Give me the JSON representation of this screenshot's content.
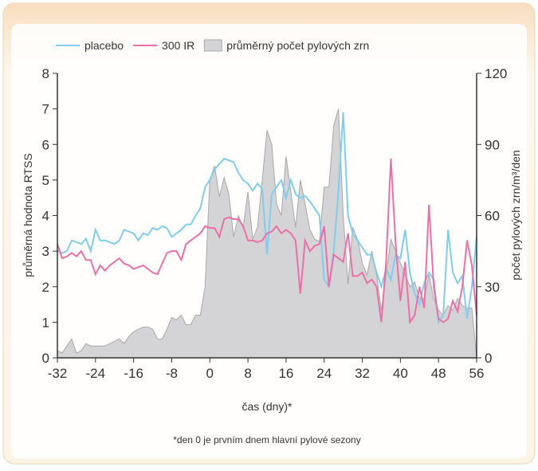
{
  "chart_data": {
    "type": "line",
    "x": [
      -32,
      -31,
      -30,
      -29,
      -28,
      -27,
      -26,
      -25,
      -24,
      -23,
      -22,
      -21,
      -20,
      -19,
      -18,
      -17,
      -16,
      -15,
      -14,
      -13,
      -12,
      -11,
      -10,
      -9,
      -8,
      -7,
      -6,
      -5,
      -4,
      -3,
      -2,
      -1,
      0,
      1,
      2,
      3,
      4,
      5,
      6,
      7,
      8,
      9,
      10,
      11,
      12,
      13,
      14,
      15,
      16,
      17,
      18,
      19,
      20,
      21,
      22,
      23,
      24,
      25,
      26,
      27,
      28,
      29,
      30,
      31,
      32,
      33,
      34,
      35,
      36,
      37,
      38,
      39,
      40,
      41,
      42,
      43,
      44,
      45,
      46,
      47,
      48,
      49,
      50,
      51,
      52,
      53,
      54,
      55,
      56
    ],
    "series": [
      {
        "name": "placebo",
        "color": "#7fcdf0",
        "values": [
          3.0,
          2.95,
          3.0,
          3.3,
          3.25,
          3.2,
          3.35,
          3.0,
          3.6,
          3.3,
          3.3,
          3.25,
          3.2,
          3.3,
          3.6,
          3.55,
          3.5,
          3.3,
          3.5,
          3.45,
          3.65,
          3.6,
          3.7,
          3.65,
          3.4,
          3.5,
          3.6,
          3.75,
          3.75,
          4.0,
          4.2,
          4.8,
          5.0,
          5.3,
          5.45,
          5.6,
          5.55,
          5.5,
          5.2,
          5.0,
          4.9,
          4.7,
          4.9,
          4.75,
          2.9,
          4.6,
          4.8,
          5.0,
          4.5,
          5.0,
          4.6,
          4.5,
          4.55,
          4.4,
          4.2,
          4.0,
          2.2,
          2.0,
          3.0,
          4.7,
          6.9,
          4.0,
          3.5,
          3.3,
          3.1,
          2.9,
          2.9,
          2.4,
          2.0,
          2.5,
          2.2,
          2.9,
          2.8,
          3.6,
          2.4,
          1.8,
          1.5,
          2.1,
          2.4,
          2.2,
          1.0,
          1.2,
          3.6,
          2.4,
          2.1,
          2.3,
          1.1,
          2.0,
          3.4
        ]
      },
      {
        "name": "300 IR",
        "color": "#ee6fa8",
        "values": [
          3.2,
          2.8,
          2.85,
          2.95,
          2.85,
          3.0,
          2.75,
          2.75,
          2.35,
          2.6,
          2.45,
          2.6,
          2.7,
          2.8,
          2.65,
          2.6,
          2.5,
          2.55,
          2.6,
          2.5,
          2.4,
          2.35,
          2.65,
          2.95,
          3.0,
          3.0,
          2.75,
          3.2,
          3.3,
          3.4,
          3.5,
          3.7,
          3.65,
          3.65,
          3.4,
          3.9,
          3.95,
          3.9,
          3.9,
          3.7,
          3.3,
          3.3,
          3.25,
          3.3,
          3.5,
          3.55,
          3.7,
          3.5,
          3.6,
          3.5,
          3.3,
          1.8,
          3.3,
          3.0,
          3.15,
          3.2,
          3.7,
          2.0,
          2.9,
          2.8,
          2.7,
          3.5,
          2.3,
          2.3,
          2.4,
          2.1,
          2.2,
          2.0,
          1.0,
          2.7,
          5.6,
          3.2,
          1.6,
          2.7,
          1.0,
          1.2,
          2.0,
          1.4,
          4.3,
          2.0,
          1.1,
          1.0,
          1.1,
          1.6,
          1.3,
          2.0,
          3.3,
          2.6,
          1.2
        ]
      },
      {
        "name": "průměrný počet pylových zrn",
        "color": "#d4d4d6",
        "axis": "y2",
        "values": [
          3,
          2,
          5,
          8,
          2,
          3,
          6,
          5,
          5,
          5,
          5,
          6,
          7,
          8,
          6,
          9,
          11,
          12,
          13,
          13,
          12,
          8,
          8,
          12,
          17,
          16,
          18,
          14,
          14,
          18,
          18,
          30,
          75,
          81,
          68,
          76,
          69,
          51,
          60,
          55,
          70,
          50,
          55,
          75,
          96,
          90,
          65,
          60,
          85,
          70,
          55,
          75,
          65,
          54,
          50,
          49,
          72,
          72,
          98,
          105,
          60,
          31,
          55,
          50,
          40,
          35,
          45,
          35,
          20,
          35,
          50,
          45,
          40,
          35,
          30,
          32,
          25,
          25,
          35,
          25,
          20,
          18,
          22,
          20,
          25,
          22,
          21,
          21,
          0
        ]
      }
    ],
    "xlim": [
      -32,
      56
    ],
    "xticks": [
      -32,
      -24,
      -16,
      -8,
      0,
      8,
      16,
      24,
      32,
      40,
      48,
      56
    ],
    "ylim": [
      0,
      8
    ],
    "yticks": [
      0,
      1,
      2,
      3,
      4,
      5,
      6,
      7,
      8
    ],
    "y2lim": [
      0,
      120
    ],
    "y2ticks": [
      0,
      30,
      60,
      90,
      120
    ],
    "xlabel": "čas (dny)*",
    "ylabel": "průměrná hodnota RTSS",
    "y2label": "počet pylových zrn/m³/den",
    "footnote": "*den 0 je prvním dnem hlavní pylové sezony",
    "legend": "top"
  }
}
